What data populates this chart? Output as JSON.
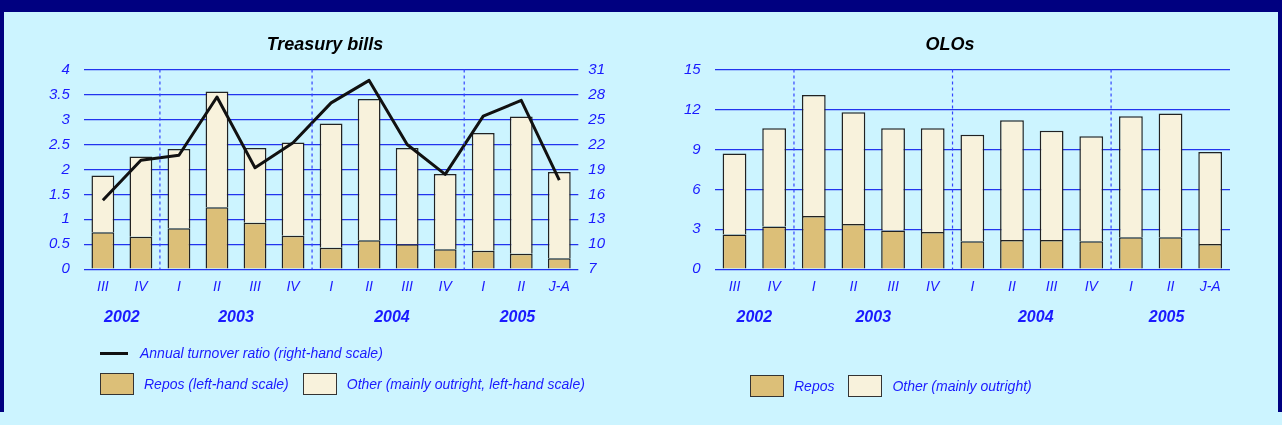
{
  "chart_data": [
    {
      "type": "bar",
      "title": "Treasury bills",
      "stacked": true,
      "grid": "y",
      "legend": "bottom",
      "categories": [
        "III",
        "IV",
        "I",
        "II",
        "III",
        "IV",
        "I",
        "II",
        "III",
        "IV",
        "I",
        "II",
        "J-A"
      ],
      "series": [
        {
          "name": "Repos (left-hand scale)",
          "color": "#dcbf78",
          "values": [
            0.74,
            0.65,
            0.82,
            1.24,
            0.93,
            0.67,
            0.43,
            0.58,
            0.5,
            0.4,
            0.37,
            0.31,
            0.22
          ]
        },
        {
          "name": "Other (mainly outright, left-hand scale)",
          "color": "#f8f2dc",
          "values": [
            1.14,
            1.61,
            1.59,
            2.32,
            1.5,
            1.87,
            2.49,
            2.83,
            1.93,
            1.51,
            2.36,
            2.75,
            1.73
          ]
        },
        {
          "name": "Annual turnover ratio (right-hand scale)",
          "type": "line",
          "axis": "y2",
          "color": "#111111",
          "values": [
            15.3,
            20.1,
            20.7,
            27.7,
            19.2,
            22.2,
            27.0,
            29.7,
            22.0,
            18.4,
            25.4,
            27.3,
            17.7
          ]
        }
      ],
      "ylim": [
        0,
        4
      ],
      "yticks": [
        0,
        0.5,
        1,
        1.5,
        2,
        2.5,
        3,
        3.5,
        4
      ],
      "y2lim": [
        7,
        31
      ],
      "y2ticks": [
        7,
        10,
        13,
        16,
        19,
        22,
        25,
        28,
        31
      ],
      "annotations": [
        "2002",
        "2003",
        "2004",
        "2005"
      ]
    },
    {
      "type": "bar",
      "title": "OLOs",
      "stacked": true,
      "grid": "y",
      "legend": "bottom",
      "categories": [
        "III",
        "IV",
        "I",
        "II",
        "III",
        "IV",
        "I",
        "II",
        "III",
        "IV",
        "I",
        "II",
        "J-A"
      ],
      "series": [
        {
          "name": "Repos",
          "color": "#dcbf78",
          "values": [
            2.6,
            3.2,
            4.0,
            3.4,
            2.9,
            2.8,
            2.1,
            2.2,
            2.2,
            2.1,
            2.4,
            2.4,
            1.9
          ]
        },
        {
          "name": "Other (mainly outright)",
          "color": "#f8f2dc",
          "values": [
            6.1,
            7.4,
            9.1,
            8.4,
            7.7,
            7.8,
            8.0,
            9.0,
            8.2,
            7.9,
            9.1,
            9.3,
            6.9
          ]
        }
      ],
      "ylim": [
        0,
        15
      ],
      "yticks": [
        0,
        3,
        6,
        9,
        12,
        15
      ],
      "annotations": [
        "2002",
        "2003",
        "2004",
        "2005"
      ]
    }
  ]
}
